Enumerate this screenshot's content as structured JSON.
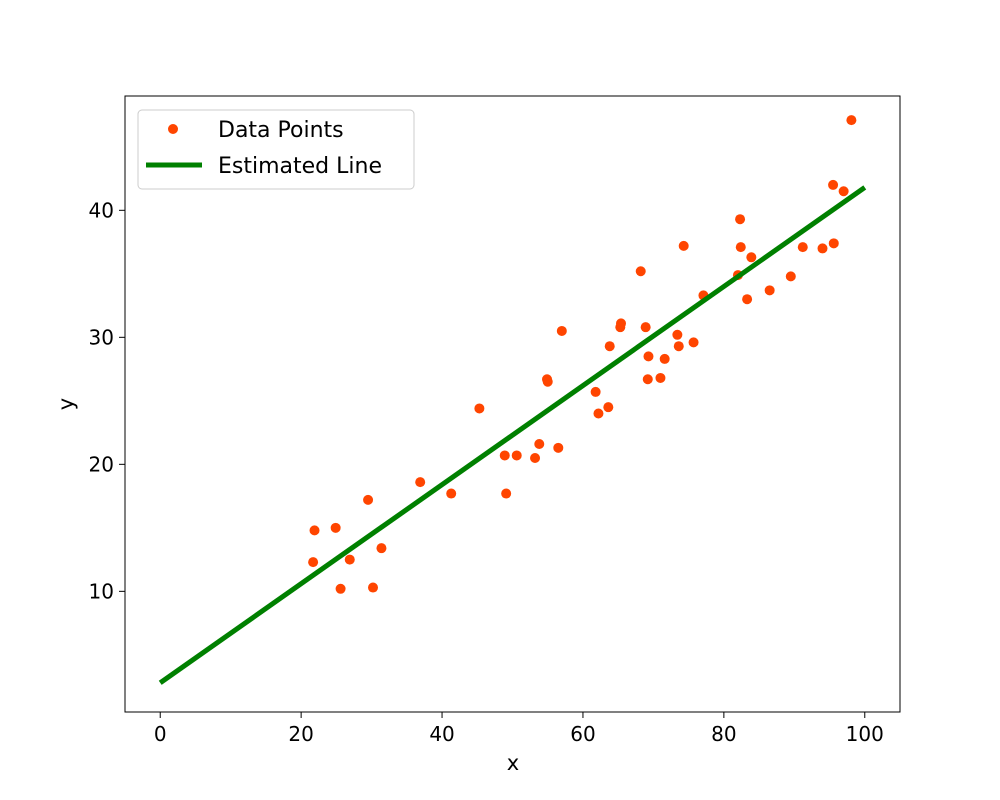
{
  "chart_data": {
    "type": "scatter",
    "title": "",
    "xlabel": "x",
    "ylabel": "y",
    "xlim": [
      -5,
      105
    ],
    "ylim": [
      0.5,
      49
    ],
    "xticks": [
      0,
      20,
      40,
      60,
      80,
      100
    ],
    "yticks": [
      10,
      20,
      30,
      40
    ],
    "grid": false,
    "legend": {
      "placement": "upper-left",
      "entries": [
        "Data Points",
        "Estimated Line"
      ]
    },
    "series": [
      {
        "name": "Data Points",
        "kind": "scatter",
        "color": "#ff4500",
        "points": [
          [
            21.7,
            12.3
          ],
          [
            21.9,
            14.8
          ],
          [
            24.9,
            15.0
          ],
          [
            25.6,
            10.2
          ],
          [
            26.9,
            12.5
          ],
          [
            29.5,
            17.2
          ],
          [
            30.2,
            10.3
          ],
          [
            31.4,
            13.4
          ],
          [
            36.9,
            18.6
          ],
          [
            41.3,
            17.7
          ],
          [
            45.3,
            24.4
          ],
          [
            48.9,
            20.7
          ],
          [
            49.1,
            17.7
          ],
          [
            50.6,
            20.7
          ],
          [
            53.2,
            20.5
          ],
          [
            53.8,
            21.6
          ],
          [
            54.9,
            26.7
          ],
          [
            55.0,
            26.5
          ],
          [
            56.5,
            21.3
          ],
          [
            57.0,
            30.5
          ],
          [
            61.8,
            25.7
          ],
          [
            62.2,
            24.0
          ],
          [
            63.6,
            24.5
          ],
          [
            63.8,
            29.3
          ],
          [
            65.3,
            30.8
          ],
          [
            65.4,
            31.1
          ],
          [
            68.2,
            35.2
          ],
          [
            68.9,
            30.8
          ],
          [
            69.2,
            26.7
          ],
          [
            69.3,
            28.5
          ],
          [
            71.0,
            26.8
          ],
          [
            71.6,
            28.3
          ],
          [
            73.4,
            30.2
          ],
          [
            73.6,
            29.3
          ],
          [
            74.3,
            37.2
          ],
          [
            75.7,
            29.6
          ],
          [
            77.1,
            33.3
          ],
          [
            82.0,
            34.9
          ],
          [
            82.3,
            39.3
          ],
          [
            82.4,
            37.1
          ],
          [
            83.3,
            33.0
          ],
          [
            83.9,
            36.3
          ],
          [
            86.5,
            33.7
          ],
          [
            89.5,
            34.8
          ],
          [
            91.2,
            37.1
          ],
          [
            94.0,
            37.0
          ],
          [
            95.5,
            42.0
          ],
          [
            95.6,
            37.4
          ],
          [
            97.0,
            41.5
          ],
          [
            98.1,
            47.1
          ]
        ]
      },
      {
        "name": "Estimated Line",
        "kind": "line",
        "color": "#008000",
        "x": [
          0,
          100
        ],
        "y": [
          2.8,
          41.8
        ]
      }
    ]
  }
}
